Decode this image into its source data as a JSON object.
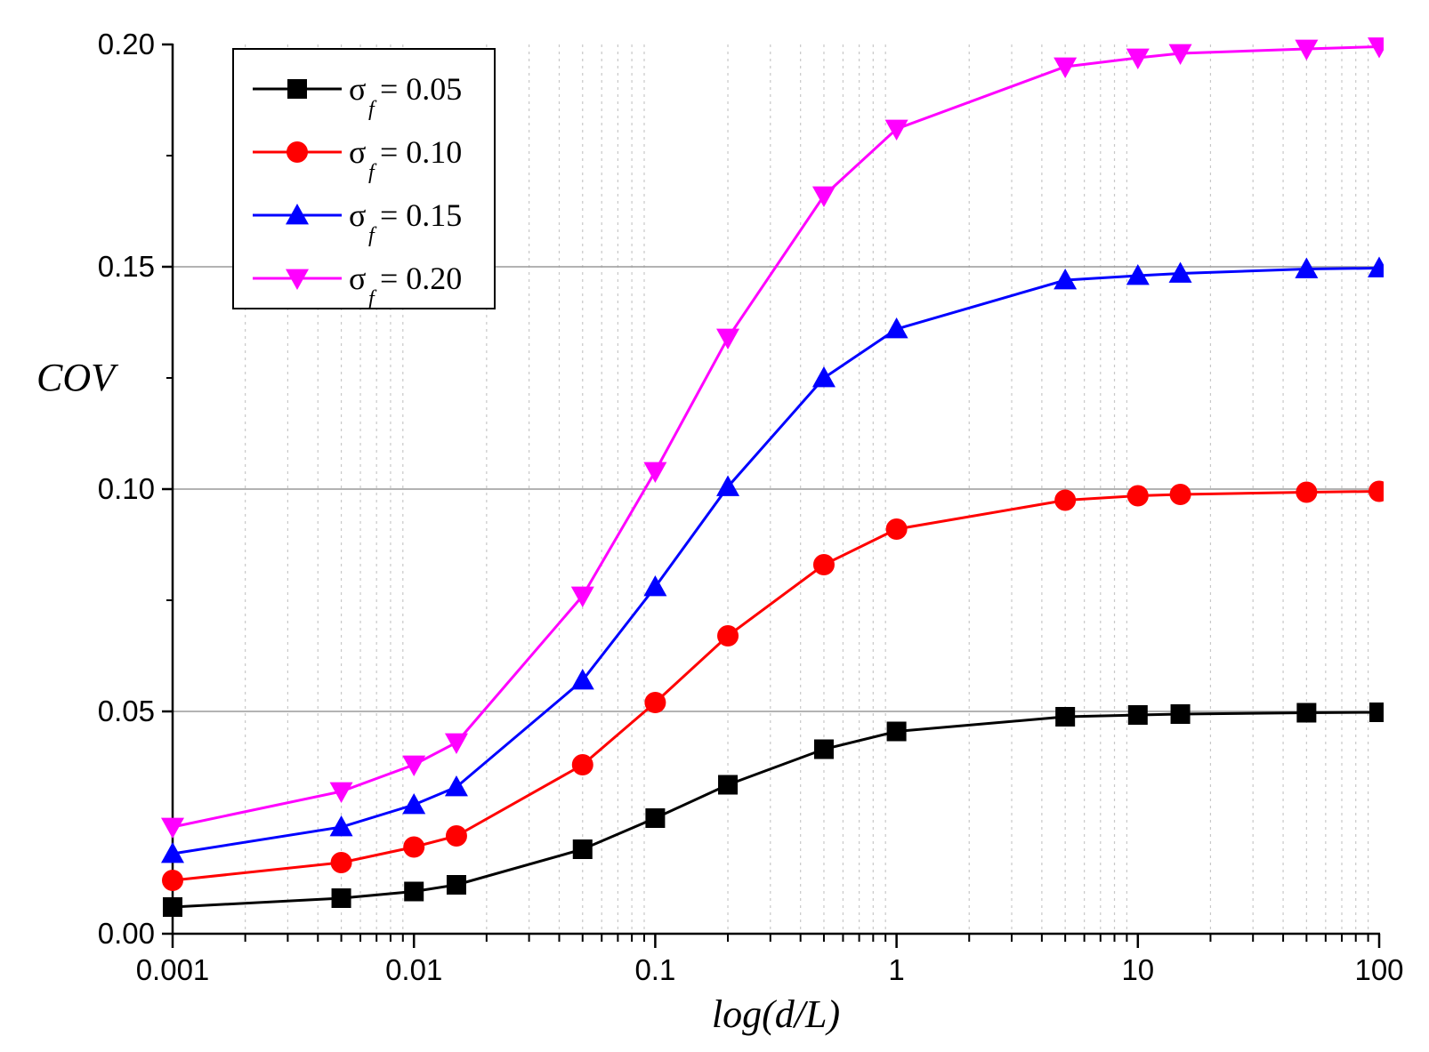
{
  "chart_data": {
    "type": "line",
    "title": "",
    "xlabel": "log(d/L)",
    "ylabel": "COV",
    "x_scale": "log",
    "xlim": [
      0.001,
      100
    ],
    "ylim": [
      0.0,
      0.2
    ],
    "x_ticks": [
      0.001,
      0.01,
      0.1,
      1,
      10,
      100
    ],
    "x_tick_labels": [
      "0.001",
      "0.01",
      "0.1",
      "1",
      "10",
      "100"
    ],
    "y_ticks": [
      0.0,
      0.05,
      0.1,
      0.15,
      0.2
    ],
    "y_tick_labels": [
      "0.00",
      "0.05",
      "0.10",
      "0.15",
      "0.20"
    ],
    "grid": "horizontal major lines, vertical dotted minor lines",
    "legend_position": "top-left",
    "x": [
      0.001,
      0.005,
      0.01,
      0.015,
      0.05,
      0.1,
      0.2,
      0.5,
      1,
      5,
      10,
      15,
      50,
      100
    ],
    "series": [
      {
        "name": "σf = 0.05",
        "legend_symbol": "σ",
        "legend_subscript": "f",
        "legend_value": "= 0.05",
        "color": "#000000",
        "marker": "square",
        "values": [
          0.006,
          0.008,
          0.0095,
          0.011,
          0.019,
          0.026,
          0.0335,
          0.0415,
          0.0455,
          0.0488,
          0.0492,
          0.0494,
          0.0497,
          0.0498
        ]
      },
      {
        "name": "σf = 0.10",
        "legend_symbol": "σ",
        "legend_subscript": "f",
        "legend_value": "= 0.10",
        "color": "#ff0000",
        "marker": "circle",
        "values": [
          0.012,
          0.016,
          0.0195,
          0.022,
          0.038,
          0.052,
          0.067,
          0.083,
          0.091,
          0.0975,
          0.0985,
          0.0988,
          0.0993,
          0.0995
        ]
      },
      {
        "name": "σf = 0.15",
        "legend_symbol": "σ",
        "legend_subscript": "f",
        "legend_value": "= 0.15",
        "color": "#0000ff",
        "marker": "triangle-up",
        "values": [
          0.018,
          0.024,
          0.029,
          0.033,
          0.057,
          0.078,
          0.1005,
          0.125,
          0.136,
          0.147,
          0.148,
          0.1485,
          0.1495,
          0.1497
        ]
      },
      {
        "name": "σf = 0.20",
        "legend_symbol": "σ",
        "legend_subscript": "f",
        "legend_value": "= 0.20",
        "color": "#ff00ff",
        "marker": "triangle-down",
        "values": [
          0.024,
          0.032,
          0.038,
          0.043,
          0.076,
          0.104,
          0.134,
          0.166,
          0.181,
          0.195,
          0.197,
          0.198,
          0.199,
          0.1995
        ]
      }
    ]
  }
}
